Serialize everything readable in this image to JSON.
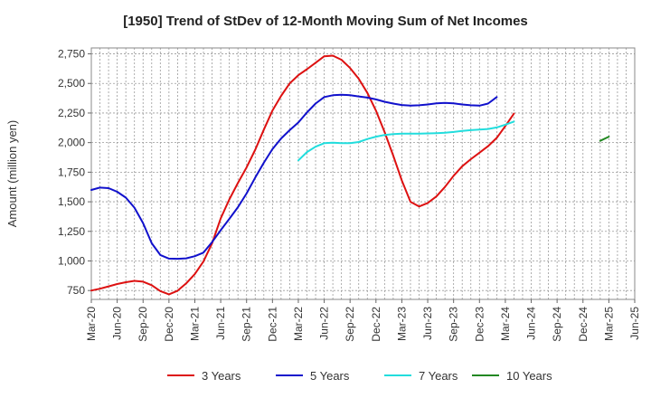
{
  "chart_data": {
    "type": "line",
    "title": "[1950]  Trend of StDev of 12-Month Moving Sum of Net Incomes",
    "xlabel": "",
    "ylabel": "Amount (million yen)",
    "ylim": [
      675,
      2800
    ],
    "yticks": [
      750,
      1000,
      1250,
      1500,
      1750,
      2000,
      2250,
      2500,
      2750
    ],
    "ytick_labels": [
      "750",
      "1,000",
      "1,250",
      "1,500",
      "1,750",
      "2,000",
      "2,250",
      "2,500",
      "2,750"
    ],
    "xticks": [
      "Mar-20",
      "Jun-20",
      "Sep-20",
      "Dec-20",
      "Mar-21",
      "Jun-21",
      "Sep-21",
      "Dec-21",
      "Mar-22",
      "Jun-22",
      "Sep-22",
      "Dec-22",
      "Mar-23",
      "Jun-23",
      "Sep-23",
      "Dec-23",
      "Mar-24",
      "Jun-24",
      "Sep-24",
      "Dec-24",
      "Mar-25",
      "Jun-25"
    ],
    "grid": true,
    "legend_position": "bottom",
    "series": [
      {
        "name": "3 Years",
        "color": "#dd1111",
        "start": "Mar-20",
        "values": [
          750,
          765,
          785,
          805,
          820,
          832,
          825,
          795,
          745,
          718,
          748,
          810,
          890,
          995,
          1150,
          1360,
          1520,
          1660,
          1790,
          1940,
          2110,
          2270,
          2395,
          2500,
          2570,
          2620,
          2675,
          2730,
          2735,
          2700,
          2630,
          2540,
          2420,
          2270,
          2090,
          1890,
          1680,
          1500,
          1460,
          1490,
          1545,
          1625,
          1720,
          1800,
          1860,
          1915,
          1970,
          2040,
          2140,
          2245
        ]
      },
      {
        "name": "5 Years",
        "color": "#1111cc",
        "start": "Mar-20",
        "values": [
          1600,
          1620,
          1615,
          1585,
          1535,
          1450,
          1320,
          1150,
          1050,
          1020,
          1018,
          1022,
          1040,
          1070,
          1160,
          1260,
          1355,
          1455,
          1570,
          1705,
          1830,
          1945,
          2035,
          2105,
          2170,
          2255,
          2330,
          2385,
          2400,
          2405,
          2400,
          2390,
          2380,
          2365,
          2345,
          2330,
          2318,
          2312,
          2315,
          2322,
          2332,
          2336,
          2332,
          2322,
          2315,
          2312,
          2330,
          2385
        ]
      },
      {
        "name": "7 Years",
        "color": "#22dddd",
        "start": "Mar-22",
        "values": [
          1850,
          1920,
          1965,
          1995,
          2000,
          1995,
          1995,
          2005,
          2030,
          2050,
          2065,
          2072,
          2075,
          2076,
          2076,
          2078,
          2080,
          2084,
          2090,
          2098,
          2105,
          2110,
          2115,
          2128,
          2152,
          2178
        ]
      },
      {
        "name": "10 Years",
        "color": "#228822",
        "start": "Feb-25",
        "values": [
          2015,
          2050
        ]
      }
    ]
  }
}
